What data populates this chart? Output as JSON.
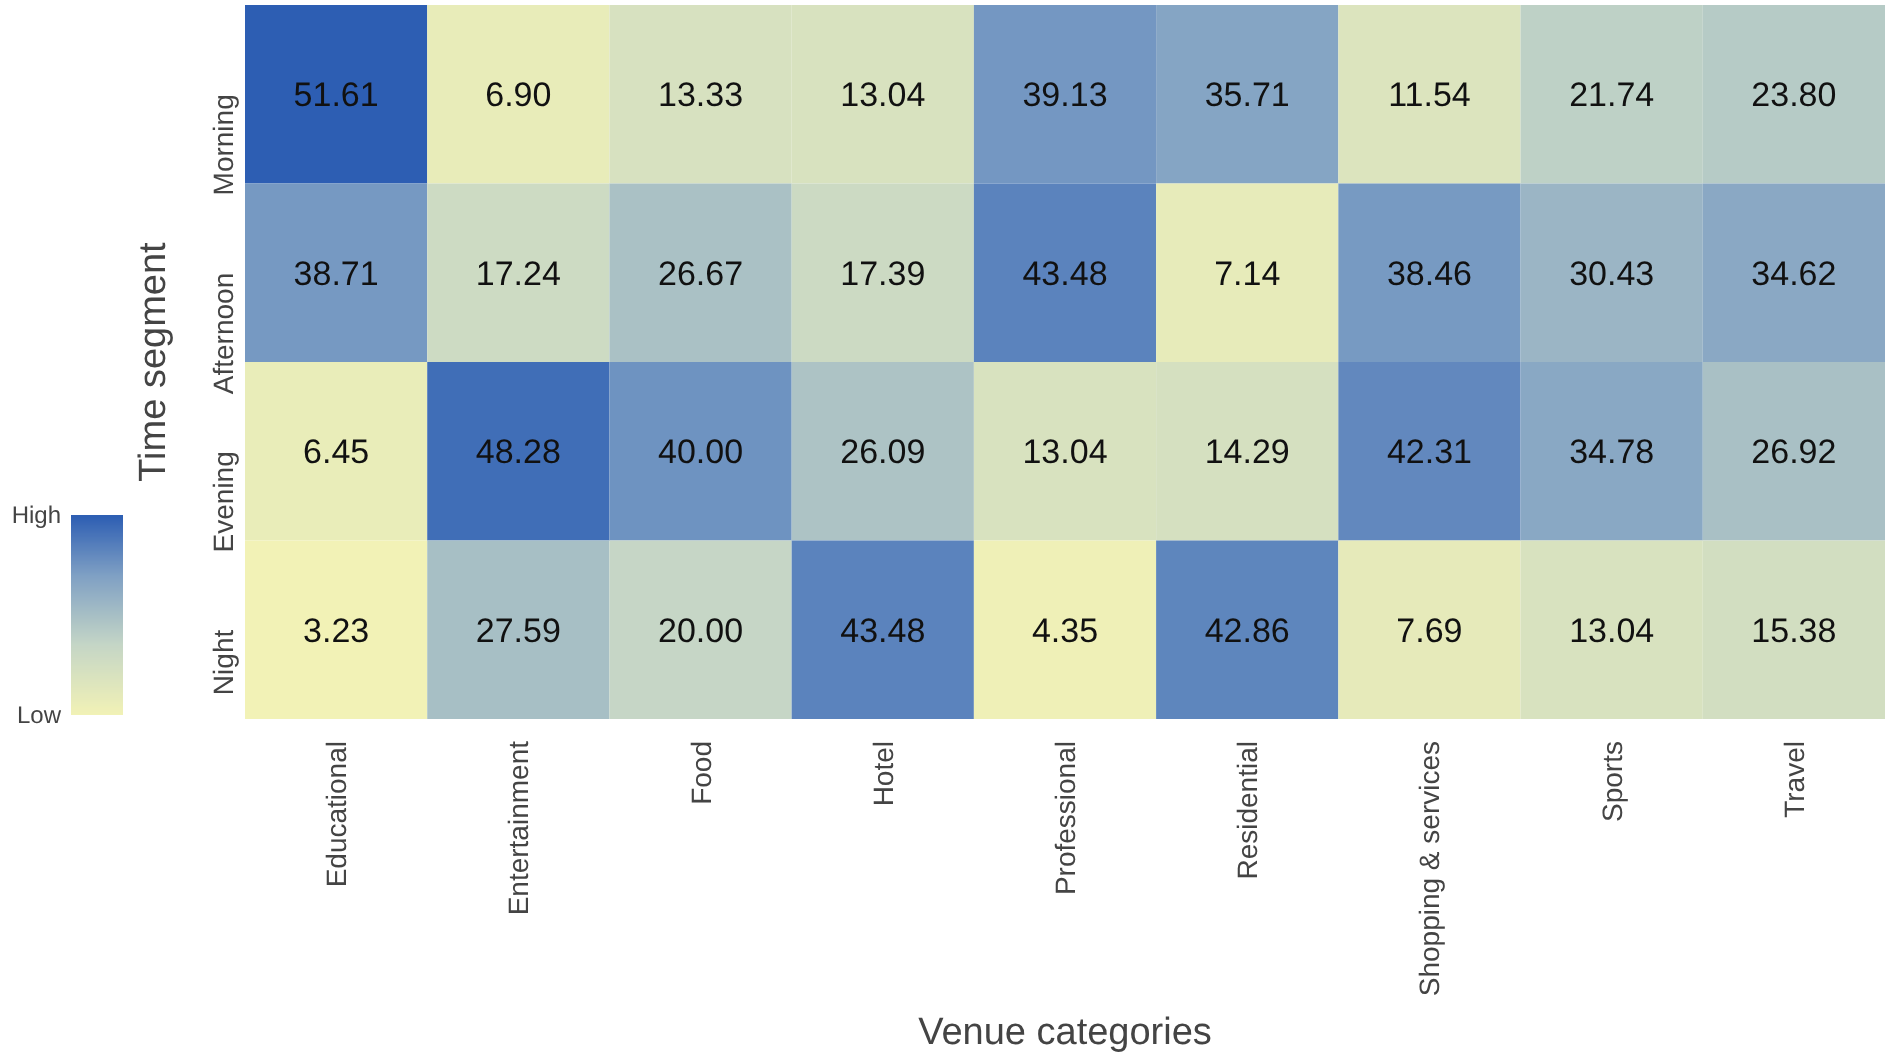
{
  "chart_data": {
    "type": "heatmap",
    "xlabel": "Venue categories",
    "ylabel": "Time segment",
    "categories": [
      "Educational",
      "Entertainment",
      "Food",
      "Hotel",
      "Professional",
      "Residential",
      "Shopping & services",
      "Sports",
      "Travel"
    ],
    "y_categories": [
      "Morning",
      "Afternoon",
      "Evening",
      "Night"
    ],
    "cells": [
      [
        51.61,
        6.9,
        13.33,
        13.04,
        39.13,
        35.71,
        11.54,
        21.74,
        23.8
      ],
      [
        38.71,
        17.24,
        26.67,
        17.39,
        43.48,
        7.14,
        38.46,
        30.43,
        34.62
      ],
      [
        6.45,
        48.28,
        40.0,
        26.09,
        13.04,
        14.29,
        42.31,
        34.78,
        26.92
      ],
      [
        3.23,
        27.59,
        20.0,
        43.48,
        4.35,
        42.86,
        7.69,
        13.04,
        15.38
      ]
    ],
    "cell_labels": [
      [
        "51.61",
        "6.90",
        "13.33",
        "13.04",
        "39.13",
        "35.71",
        "11.54",
        "21.74",
        "23.80"
      ],
      [
        "38.71",
        "17.24",
        "26.67",
        "17.39",
        "43.48",
        "7.14",
        "38.46",
        "30.43",
        "34.62"
      ],
      [
        "6.45",
        "48.28",
        "40.00",
        "26.09",
        "13.04",
        "14.29",
        "42.31",
        "34.78",
        "26.92"
      ],
      [
        "3.23",
        "27.59",
        "20.00",
        "43.48",
        "4.35",
        "42.86",
        "7.69",
        "13.04",
        "15.38"
      ]
    ],
    "clim": [
      3.23,
      51.61
    ],
    "cticks": [
      {
        "value": 3.23,
        "label": "Low"
      },
      {
        "value": 51.61,
        "label": "High"
      }
    ]
  }
}
